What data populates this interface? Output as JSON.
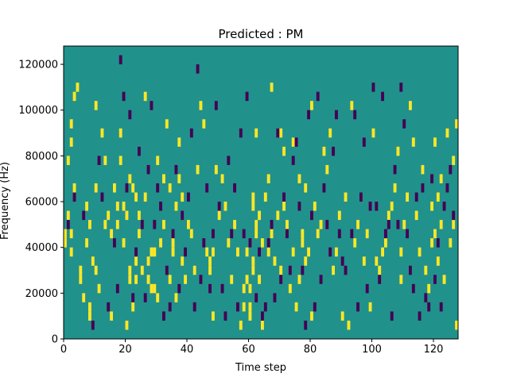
{
  "colors": {
    "background": "#21918c",
    "low": "#440154",
    "high": "#fde725",
    "axis": "#000000"
  },
  "chart_data": {
    "type": "heatmap",
    "title": "Predicted : PM",
    "xlabel": "Time step",
    "ylabel": "Frequency (Hz)",
    "xlim": [
      0,
      128
    ],
    "ylim": [
      0,
      128000
    ],
    "x_ticks": [
      0,
      20,
      40,
      60,
      80,
      100,
      120
    ],
    "y_ticks": [
      0,
      20000,
      40000,
      60000,
      80000,
      100000,
      120000
    ],
    "grid": false,
    "legend": "none",
    "background_value": 0,
    "cells_high": [
      [
        0,
        40000
      ],
      [
        0,
        44000
      ],
      [
        1,
        52000
      ],
      [
        1,
        76000
      ],
      [
        2,
        36000
      ],
      [
        2,
        44000
      ],
      [
        2,
        84000
      ],
      [
        2,
        92000
      ],
      [
        3,
        64000
      ],
      [
        3,
        104000
      ],
      [
        4,
        108000
      ],
      [
        5,
        24000
      ],
      [
        5,
        28000
      ],
      [
        6,
        16000
      ],
      [
        7,
        40000
      ],
      [
        7,
        56000
      ],
      [
        8,
        8000
      ],
      [
        8,
        12000
      ],
      [
        8,
        48000
      ],
      [
        9,
        32000
      ],
      [
        10,
        28000
      ],
      [
        10,
        64000
      ],
      [
        10,
        100000
      ],
      [
        11,
        20000
      ],
      [
        12,
        88000
      ],
      [
        13,
        76000
      ],
      [
        13,
        48000
      ],
      [
        14,
        52000
      ],
      [
        15,
        8000
      ],
      [
        15,
        44000
      ],
      [
        16,
        64000
      ],
      [
        17,
        48000
      ],
      [
        17,
        56000
      ],
      [
        18,
        76000
      ],
      [
        18,
        88000
      ],
      [
        19,
        40000
      ],
      [
        19,
        56000
      ],
      [
        20,
        52000
      ],
      [
        20,
        4000
      ],
      [
        21,
        28000
      ],
      [
        21,
        24000
      ],
      [
        21,
        68000
      ],
      [
        22,
        64000
      ],
      [
        22,
        12000
      ],
      [
        23,
        24000
      ],
      [
        23,
        32000
      ],
      [
        23,
        60000
      ],
      [
        24,
        44000
      ],
      [
        24,
        52000
      ],
      [
        25,
        28000
      ],
      [
        26,
        104000
      ],
      [
        26,
        60000
      ],
      [
        27,
        32000
      ],
      [
        27,
        24000
      ],
      [
        28,
        20000
      ],
      [
        28,
        36000
      ],
      [
        29,
        20000
      ],
      [
        29,
        36000
      ],
      [
        30,
        76000
      ],
      [
        30,
        16000
      ],
      [
        31,
        40000
      ],
      [
        32,
        48000
      ],
      [
        32,
        68000
      ],
      [
        33,
        92000
      ],
      [
        34,
        24000
      ],
      [
        34,
        64000
      ],
      [
        35,
        36000
      ],
      [
        35,
        40000
      ],
      [
        36,
        56000
      ],
      [
        36,
        16000
      ],
      [
        37,
        68000
      ],
      [
        37,
        84000
      ],
      [
        38,
        60000
      ],
      [
        38,
        32000
      ],
      [
        39,
        24000
      ],
      [
        40,
        48000
      ],
      [
        41,
        44000
      ],
      [
        42,
        28000
      ],
      [
        43,
        72000
      ],
      [
        44,
        100000
      ],
      [
        45,
        92000
      ],
      [
        46,
        36000
      ],
      [
        47,
        32000
      ],
      [
        47,
        28000
      ],
      [
        48,
        8000
      ],
      [
        48,
        36000
      ],
      [
        49,
        72000
      ],
      [
        50,
        52000
      ],
      [
        51,
        68000
      ],
      [
        52,
        56000
      ],
      [
        53,
        40000
      ],
      [
        54,
        24000
      ],
      [
        55,
        48000
      ],
      [
        56,
        36000
      ],
      [
        57,
        4000
      ],
      [
        58,
        12000
      ],
      [
        58,
        20000
      ],
      [
        59,
        24000
      ],
      [
        59,
        36000
      ],
      [
        60,
        8000
      ],
      [
        60,
        12000
      ],
      [
        60,
        20000
      ],
      [
        61,
        28000
      ],
      [
        61,
        32000
      ],
      [
        61,
        56000
      ],
      [
        61,
        60000
      ],
      [
        62,
        44000
      ],
      [
        62,
        48000
      ],
      [
        62,
        88000
      ],
      [
        63,
        52000
      ],
      [
        63,
        24000
      ],
      [
        64,
        40000
      ],
      [
        64,
        4000
      ],
      [
        65,
        60000
      ],
      [
        66,
        36000
      ],
      [
        66,
        68000
      ],
      [
        67,
        44000
      ],
      [
        67,
        108000
      ],
      [
        68,
        32000
      ],
      [
        69,
        52000
      ],
      [
        70,
        28000
      ],
      [
        70,
        88000
      ],
      [
        71,
        80000
      ],
      [
        71,
        56000
      ],
      [
        72,
        48000
      ],
      [
        73,
        20000
      ],
      [
        74,
        36000
      ],
      [
        74,
        84000
      ],
      [
        75,
        12000
      ],
      [
        76,
        24000
      ],
      [
        76,
        68000
      ],
      [
        77,
        44000
      ],
      [
        77,
        40000
      ],
      [
        78,
        32000
      ],
      [
        78,
        64000
      ],
      [
        79,
        36000
      ],
      [
        80,
        8000
      ],
      [
        80,
        100000
      ],
      [
        81,
        56000
      ],
      [
        82,
        44000
      ],
      [
        83,
        48000
      ],
      [
        84,
        80000
      ],
      [
        85,
        72000
      ],
      [
        86,
        88000
      ],
      [
        87,
        28000
      ],
      [
        88,
        36000
      ],
      [
        89,
        52000
      ],
      [
        90,
        8000
      ],
      [
        91,
        60000
      ],
      [
        92,
        4000
      ],
      [
        93,
        100000
      ],
      [
        94,
        40000
      ],
      [
        95,
        48000
      ],
      [
        96,
        60000
      ],
      [
        97,
        32000
      ],
      [
        98,
        44000
      ],
      [
        99,
        12000
      ],
      [
        100,
        88000
      ],
      [
        101,
        32000
      ],
      [
        102,
        28000
      ],
      [
        103,
        36000
      ],
      [
        104,
        40000
      ],
      [
        105,
        52000
      ],
      [
        106,
        56000
      ],
      [
        107,
        64000
      ],
      [
        108,
        80000
      ],
      [
        109,
        24000
      ],
      [
        109,
        36000
      ],
      [
        110,
        48000
      ],
      [
        111,
        60000
      ],
      [
        112,
        100000
      ],
      [
        113,
        84000
      ],
      [
        114,
        52000
      ],
      [
        115,
        36000
      ],
      [
        116,
        72000
      ],
      [
        117,
        28000
      ],
      [
        118,
        20000
      ],
      [
        119,
        40000
      ],
      [
        119,
        56000
      ],
      [
        120,
        44000
      ],
      [
        120,
        84000
      ],
      [
        121,
        60000
      ],
      [
        121,
        32000
      ],
      [
        122,
        68000
      ],
      [
        122,
        48000
      ],
      [
        123,
        24000
      ],
      [
        124,
        88000
      ],
      [
        125,
        40000
      ],
      [
        126,
        76000
      ],
      [
        126,
        48000
      ],
      [
        127,
        4000
      ],
      [
        127,
        92000
      ]
    ],
    "cells_low": [
      [
        1,
        48000
      ],
      [
        3,
        60000
      ],
      [
        6,
        52000
      ],
      [
        9,
        4000
      ],
      [
        11,
        76000
      ],
      [
        12,
        60000
      ],
      [
        14,
        12000
      ],
      [
        16,
        40000
      ],
      [
        17,
        20000
      ],
      [
        18,
        120000
      ],
      [
        19,
        104000
      ],
      [
        20,
        64000
      ],
      [
        21,
        96000
      ],
      [
        22,
        16000
      ],
      [
        23,
        36000
      ],
      [
        24,
        80000
      ],
      [
        25,
        48000
      ],
      [
        26,
        16000
      ],
      [
        27,
        72000
      ],
      [
        28,
        100000
      ],
      [
        29,
        48000
      ],
      [
        30,
        64000
      ],
      [
        31,
        56000
      ],
      [
        32,
        8000
      ],
      [
        33,
        28000
      ],
      [
        34,
        12000
      ],
      [
        35,
        44000
      ],
      [
        36,
        72000
      ],
      [
        37,
        20000
      ],
      [
        38,
        52000
      ],
      [
        39,
        36000
      ],
      [
        40,
        60000
      ],
      [
        41,
        88000
      ],
      [
        42,
        12000
      ],
      [
        43,
        116000
      ],
      [
        44,
        24000
      ],
      [
        45,
        40000
      ],
      [
        46,
        64000
      ],
      [
        47,
        20000
      ],
      [
        48,
        44000
      ],
      [
        49,
        100000
      ],
      [
        50,
        56000
      ],
      [
        51,
        20000
      ],
      [
        52,
        8000
      ],
      [
        53,
        76000
      ],
      [
        54,
        44000
      ],
      [
        55,
        64000
      ],
      [
        56,
        12000
      ],
      [
        57,
        88000
      ],
      [
        58,
        44000
      ],
      [
        59,
        104000
      ],
      [
        60,
        40000
      ],
      [
        62,
        16000
      ],
      [
        63,
        36000
      ],
      [
        64,
        8000
      ],
      [
        65,
        12000
      ],
      [
        66,
        40000
      ],
      [
        67,
        48000
      ],
      [
        68,
        16000
      ],
      [
        69,
        88000
      ],
      [
        70,
        24000
      ],
      [
        71,
        60000
      ],
      [
        72,
        44000
      ],
      [
        73,
        28000
      ],
      [
        74,
        76000
      ],
      [
        75,
        84000
      ],
      [
        76,
        56000
      ],
      [
        77,
        28000
      ],
      [
        78,
        4000
      ],
      [
        79,
        96000
      ],
      [
        80,
        52000
      ],
      [
        81,
        12000
      ],
      [
        82,
        104000
      ],
      [
        83,
        24000
      ],
      [
        84,
        64000
      ],
      [
        85,
        48000
      ],
      [
        86,
        36000
      ],
      [
        87,
        80000
      ],
      [
        88,
        96000
      ],
      [
        89,
        44000
      ],
      [
        90,
        32000
      ],
      [
        91,
        28000
      ],
      [
        93,
        44000
      ],
      [
        94,
        96000
      ],
      [
        95,
        12000
      ],
      [
        96,
        60000
      ],
      [
        97,
        84000
      ],
      [
        98,
        20000
      ],
      [
        99,
        56000
      ],
      [
        100,
        108000
      ],
      [
        101,
        56000
      ],
      [
        102,
        24000
      ],
      [
        103,
        104000
      ],
      [
        104,
        44000
      ],
      [
        105,
        48000
      ],
      [
        106,
        8000
      ],
      [
        107,
        72000
      ],
      [
        108,
        48000
      ],
      [
        109,
        108000
      ],
      [
        110,
        92000
      ],
      [
        111,
        44000
      ],
      [
        112,
        28000
      ],
      [
        113,
        20000
      ],
      [
        114,
        60000
      ],
      [
        115,
        8000
      ],
      [
        116,
        64000
      ],
      [
        117,
        16000
      ],
      [
        118,
        12000
      ],
      [
        119,
        68000
      ],
      [
        120,
        24000
      ],
      [
        121,
        40000
      ],
      [
        122,
        12000
      ],
      [
        123,
        56000
      ],
      [
        124,
        64000
      ],
      [
        125,
        72000
      ],
      [
        126,
        52000
      ]
    ]
  }
}
